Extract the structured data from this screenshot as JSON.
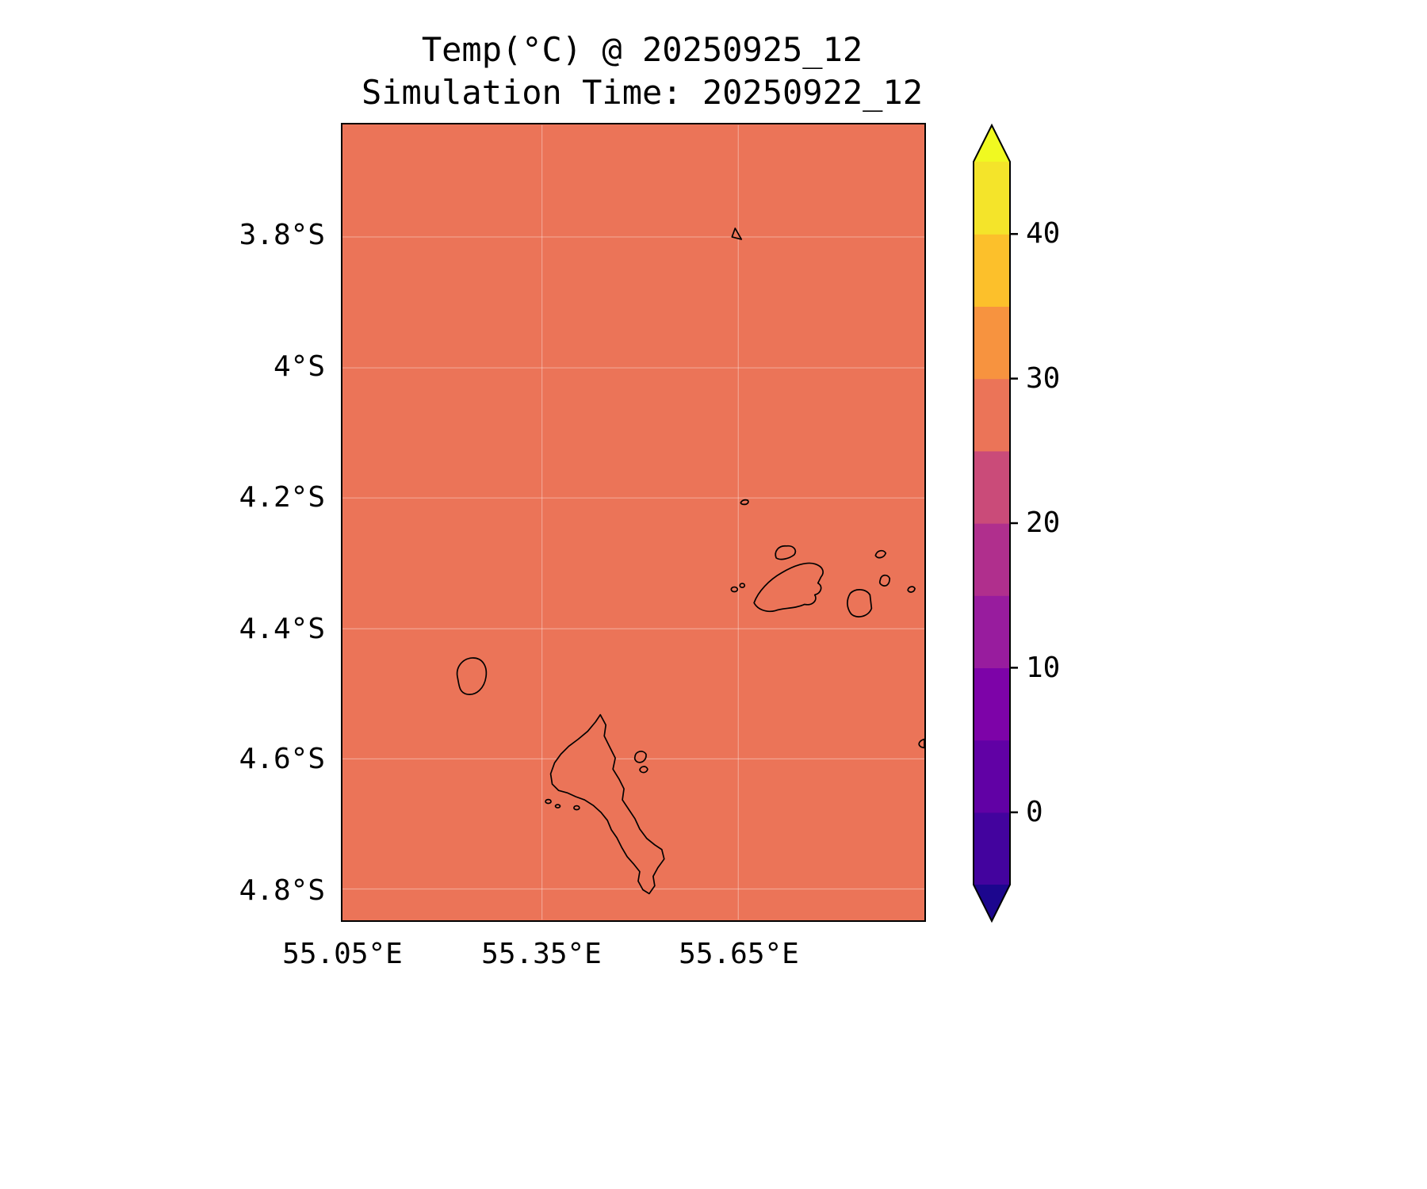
{
  "figure": {
    "title_line1": "Temp(°C) @ 20250925_12",
    "title_line2": "Simulation Time: 20250922_12"
  },
  "axes": {
    "y_tick_labels": [
      "3.8°S",
      "4°S",
      "4.2°S",
      "4.4°S",
      "4.6°S",
      "4.8°S"
    ],
    "x_tick_labels": [
      "55.05°E",
      "55.35°E",
      "55.65°E"
    ]
  },
  "colorbar": {
    "tick_labels": [
      "40",
      "30",
      "20",
      "10",
      "0"
    ],
    "levels": [
      -5,
      0,
      5,
      10,
      15,
      20,
      25,
      30,
      35,
      40,
      45
    ],
    "extend": "both",
    "segments_bottom_to_top": [
      "#43039e",
      "#6101a5",
      "#7d03a8",
      "#981c9e",
      "#b02f8d",
      "#ca4b79",
      "#eb7458",
      "#f7933f",
      "#fcc02b",
      "#f4e42a"
    ],
    "under_color": "#1c068e",
    "over_color": "#f0f921"
  },
  "chart_data": {
    "type": "heatmap",
    "title": "Temp(°C) @ 20250925_12",
    "subtitle": "Simulation Time: 20250922_12",
    "variable": "Temp",
    "units": "°C",
    "valid_time": "20250925_12",
    "simulation_time": "20250922_12",
    "x_tick_labels": [
      "55.05°E",
      "55.35°E",
      "55.65°E"
    ],
    "y_tick_labels": [
      "3.8°S",
      "4°S",
      "4.2°S",
      "4.4°S",
      "4.6°S",
      "4.8°S"
    ],
    "xlim_lon_e": [
      55.05,
      55.93
    ],
    "ylim_lat_s": [
      4.85,
      3.63
    ],
    "field_description": "Near-uniform temperature field over ocean and island coastlines (Seychelles region)",
    "field_value_c": 27,
    "field_value_band_c": [
      25,
      30
    ],
    "fill_color": "#eb7458",
    "colorbar_ticks": [
      0,
      10,
      20,
      30,
      40
    ],
    "colorbar_levels": [
      -5,
      0,
      5,
      10,
      15,
      20,
      25,
      30,
      35,
      40,
      45
    ],
    "colorbar_extend": "both",
    "grid": true,
    "legend_position": "colorbar-right",
    "overlays": [
      "island-coastlines"
    ]
  }
}
